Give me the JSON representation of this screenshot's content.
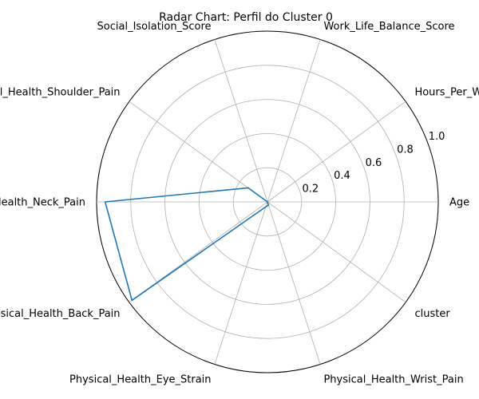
{
  "chart_data": {
    "type": "radar",
    "title": "Radar Chart: Perfil do Cluster 0",
    "categories": [
      "Age",
      "Hours_Per_Week",
      "Work_Life_Balance_Score",
      "Social_Isolation_Score",
      "Physical_Health_Shoulder_Pain",
      "Physical_Health_Neck_Pain",
      "Physical_Health_Back_Pain",
      "Physical_Health_Eye_Strain",
      "Physical_Health_Wrist_Pain",
      "cluster"
    ],
    "series": [
      {
        "color": "#1f77b4",
        "values": [
          0.0,
          0.0,
          0.0,
          0.0,
          0.14,
          0.95,
          0.98,
          0.03,
          0.02,
          0.0
        ]
      }
    ],
    "rlim": [
      0,
      1.0
    ],
    "rticks": [
      "0.2",
      "0.4",
      "0.6",
      "0.8",
      "1.0"
    ],
    "grid": true,
    "legend": "none"
  }
}
